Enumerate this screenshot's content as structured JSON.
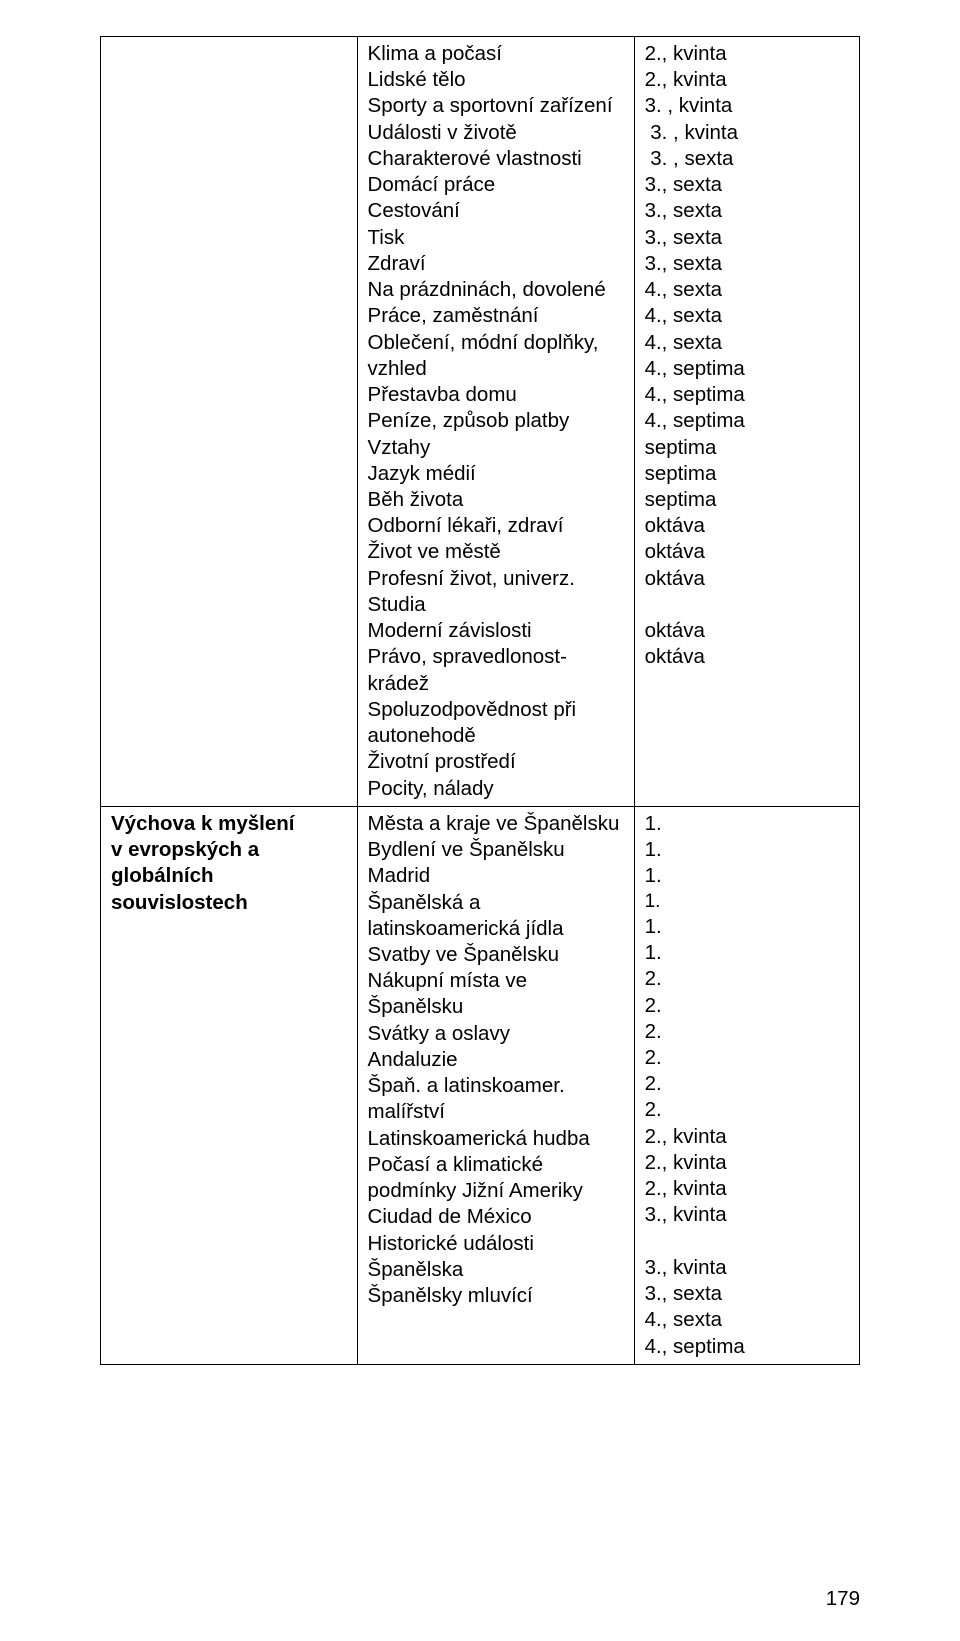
{
  "row1": {
    "c1": "",
    "c2": "Klima a počasí\nLidské tělo\nSporty a sportovní zařízení\nUdálosti v životě\nCharakterové vlastnosti\nDomácí práce\nCestování\nTisk\nZdraví\nNa prázdninách, dovolené\nPráce, zaměstnání\nOblečení, módní doplňky, vzhled\nPřestavba domu\nPeníze, způsob platby\nVztahy\nJazyk médií\nBěh života\nOdborní lékaři, zdraví\nŽivot ve městě\nProfesní život, univerz.\nStudia\nModerní závislosti\nPrávo, spravedlonost-krádež\nSpoluzodpovědnost při autonehodě\nŽivotní prostředí\nPocity, nálady",
    "c3": "2., kvinta\n2., kvinta\n3. , kvinta\n 3. , kvinta\n 3. , sexta\n3., sexta\n3., sexta\n3., sexta\n3., sexta\n4., sexta\n4., sexta\n4., sexta\n4., septima\n4., septima\n4., septima\nseptima\nseptima\nseptima\noktáva\noktáva\noktáva\n\noktáva\noktáva"
  },
  "row2": {
    "c1": "Výchova k myšlení\nv evropských a globálních souvislostech",
    "c2": "Města a kraje ve Španělsku\nBydlení ve Španělsku\nMadrid\nŠpanělská a latinskoamerická jídla\nSvatby ve Španělsku\nNákupní místa ve Španělsku\nSvátky a oslavy\nAndaluzie\nŠpaň. a latinskoamer. malířství\nLatinskoamerická hudba\nPočasí a klimatické podmínky Jižní Ameriky\nCiudad de México\nHistorické události Španělska\nŠpanělsky mluvící",
    "c3": "1.\n1.\n1.\n1.\n1.\n1.\n2.\n2.\n2.\n2.\n2.\n2.\n2., kvinta\n2., kvinta\n2., kvinta\n3., kvinta\n\n3., kvinta\n3., sexta\n4., sexta\n4., septima",
    "c3_smallidx": 3
  },
  "pagenum": "179",
  "style": {
    "page_bg": "#ffffff",
    "text_color": "#000000",
    "border_color": "#000000",
    "font_size_pt": 15.5,
    "small_font_size_pt": 14,
    "font_family": "Arial"
  }
}
